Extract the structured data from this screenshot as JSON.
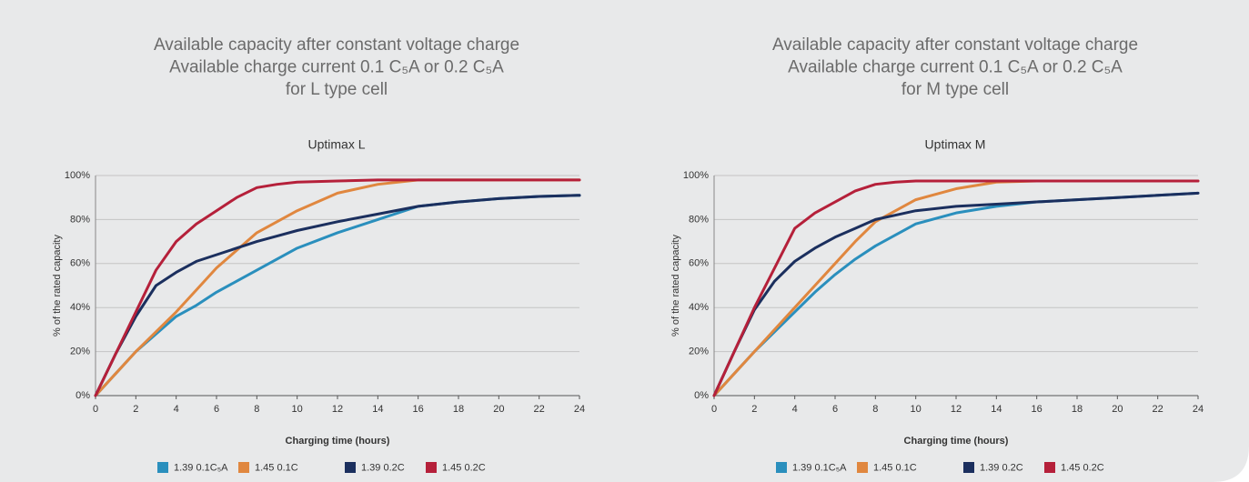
{
  "chart_data": [
    {
      "type": "line",
      "title": [
        "Available capacity after constant voltage charge",
        "Available charge current 0.1 C₅A or 0.2 C₅A",
        "for L type cell"
      ],
      "subtitle": "Uptimax L",
      "y_label": "% of the rated capacity",
      "x_label": "Charging time (hours)",
      "x": [
        0,
        1,
        2,
        3,
        4,
        5,
        6,
        7,
        8,
        9,
        10,
        12,
        14,
        16,
        18,
        20,
        22,
        24
      ],
      "xlim": [
        0,
        24
      ],
      "xticks": [
        0,
        2,
        4,
        6,
        8,
        10,
        12,
        14,
        16,
        18,
        20,
        22,
        24
      ],
      "ylim": [
        0,
        100
      ],
      "yticks": [
        {
          "value": 0,
          "label": "0%"
        },
        {
          "value": 20,
          "label": "20%"
        },
        {
          "value": 40,
          "label": "40%"
        },
        {
          "value": 60,
          "label": "60%"
        },
        {
          "value": 80,
          "label": "80%"
        },
        {
          "value": 100,
          "label": "100%"
        }
      ],
      "grid": true,
      "series": [
        {
          "name": "1.39 0.1C₅A",
          "color": "#2a8fbd",
          "values": [
            0,
            10,
            20,
            28,
            36,
            41,
            47,
            52,
            57,
            62,
            67,
            74,
            80,
            86,
            88,
            89.5,
            90.5,
            91
          ]
        },
        {
          "name": "1.45 0.1C",
          "color": "#e0873f",
          "values": [
            0,
            10,
            20,
            29,
            38,
            48,
            58,
            66,
            74,
            79,
            84,
            92,
            96,
            98,
            98,
            98,
            98,
            98
          ]
        },
        {
          "name": "1.39 0.2C",
          "color": "#1b2f5e",
          "values": [
            0,
            19,
            36,
            50,
            56,
            61,
            64,
            67,
            70,
            72.5,
            75,
            79,
            82.5,
            86,
            88,
            89.5,
            90.5,
            91
          ]
        },
        {
          "name": "1.45 0.2C",
          "color": "#b5203a",
          "values": [
            0,
            19,
            38,
            57,
            70,
            78,
            84,
            90,
            94.5,
            96,
            97,
            97.5,
            98,
            98,
            98,
            98,
            98,
            98
          ]
        }
      ]
    },
    {
      "type": "line",
      "title": [
        "Available capacity after constant voltage charge",
        "Available charge current 0.1 C₅A or 0.2 C₅A",
        "for M type cell"
      ],
      "subtitle": "Uptimax M",
      "y_label": "% of the rated capacity",
      "x_label": "Charging time (hours)",
      "x": [
        0,
        1,
        2,
        3,
        4,
        5,
        6,
        7,
        8,
        9,
        10,
        12,
        14,
        16,
        18,
        20,
        22,
        24
      ],
      "xlim": [
        0,
        24
      ],
      "xticks": [
        0,
        2,
        4,
        6,
        8,
        10,
        12,
        14,
        16,
        18,
        20,
        22,
        24
      ],
      "ylim": [
        0,
        100
      ],
      "yticks": [
        {
          "value": 0,
          "label": "0%"
        },
        {
          "value": 20,
          "label": "20%"
        },
        {
          "value": 40,
          "label": "40%"
        },
        {
          "value": 60,
          "label": "60%"
        },
        {
          "value": 80,
          "label": "80%"
        },
        {
          "value": 100,
          "label": "100%"
        }
      ],
      "grid": true,
      "series": [
        {
          "name": "1.39 0.1C₅A",
          "color": "#2a8fbd",
          "values": [
            0,
            10,
            20,
            29,
            38,
            47,
            55,
            62,
            68,
            73,
            78,
            83,
            86,
            88,
            89,
            90,
            91,
            92
          ]
        },
        {
          "name": "1.45 0.1C",
          "color": "#e0873f",
          "values": [
            0,
            10,
            20,
            30,
            40,
            50,
            60,
            70,
            79,
            84,
            89,
            94,
            97,
            97.5,
            97.5,
            97.5,
            97.5,
            97.5
          ]
        },
        {
          "name": "1.39 0.2C",
          "color": "#1b2f5e",
          "values": [
            0,
            20,
            39,
            52,
            61,
            67,
            72,
            76,
            80,
            82,
            84,
            86,
            87,
            88,
            89,
            90,
            91,
            92
          ]
        },
        {
          "name": "1.45 0.2C",
          "color": "#b5203a",
          "values": [
            0,
            20,
            40,
            58,
            76,
            83,
            88,
            93,
            96,
            97,
            97.5,
            97.5,
            97.5,
            97.5,
            97.5,
            97.5,
            97.5,
            97.5
          ]
        }
      ]
    }
  ]
}
